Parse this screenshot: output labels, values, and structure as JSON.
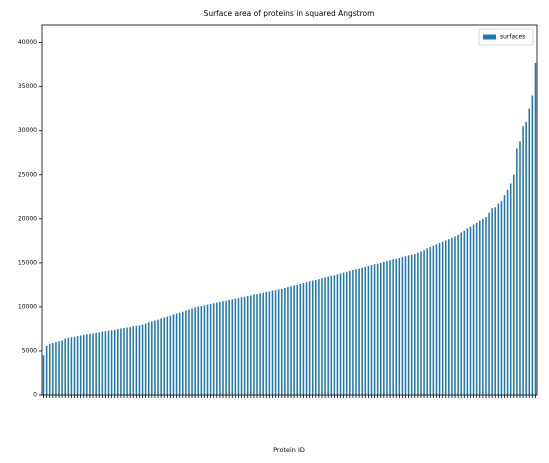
{
  "chart_data": {
    "type": "bar",
    "title": "Surface area of proteins in squared Angstrom",
    "xlabel": "Protein ID",
    "legend": "upper right",
    "series": [
      {
        "name": "surfaces",
        "color": "#1f77b4",
        "values": [
          4500,
          5600,
          5800,
          5900,
          6000,
          6100,
          6200,
          6400,
          6500,
          6550,
          6600,
          6700,
          6750,
          6800,
          6900,
          6950,
          7000,
          7050,
          7100,
          7200,
          7250,
          7300,
          7350,
          7400,
          7500,
          7550,
          7600,
          7650,
          7700,
          7800,
          7850,
          7900,
          8000,
          8100,
          8250,
          8350,
          8450,
          8550,
          8700,
          8800,
          8900,
          9000,
          9150,
          9250,
          9350,
          9450,
          9600,
          9700,
          9800,
          9950,
          10050,
          10100,
          10200,
          10250,
          10350,
          10400,
          10500,
          10550,
          10650,
          10700,
          10800,
          10850,
          10950,
          11000,
          11100,
          11150,
          11250,
          11300,
          11400,
          11450,
          11550,
          11600,
          11700,
          11750,
          11850,
          11900,
          12000,
          12050,
          12150,
          12250,
          12350,
          12450,
          12500,
          12600,
          12700,
          12800,
          12900,
          13000,
          13050,
          13150,
          13250,
          13350,
          13450,
          13550,
          13600,
          13700,
          13800,
          13900,
          14000,
          14100,
          14200,
          14300,
          14350,
          14450,
          14550,
          14650,
          14750,
          14850,
          14900,
          15000,
          15100,
          15200,
          15300,
          15400,
          15450,
          15550,
          15650,
          15750,
          15850,
          15900,
          16000,
          16150,
          16300,
          16450,
          16650,
          16800,
          16950,
          17100,
          17250,
          17400,
          17550,
          17700,
          17850,
          18000,
          18200,
          18450,
          18650,
          18900,
          19100,
          19350,
          19550,
          19800,
          20000,
          20200,
          20700,
          21200,
          21300,
          21700,
          22000,
          22700,
          23300,
          24000,
          25000,
          28000,
          28800,
          30500,
          31000,
          32500,
          34000,
          37700
        ]
      }
    ],
    "categories": [
      null,
      null,
      null,
      null,
      null,
      null,
      null,
      null,
      null,
      null,
      null,
      null,
      null,
      null,
      null,
      null,
      null,
      null,
      null,
      null,
      null,
      null,
      null,
      null,
      null,
      null,
      null,
      null,
      null,
      null,
      null,
      null,
      null,
      null,
      null,
      null,
      null,
      null,
      null,
      null,
      null,
      null,
      null,
      null,
      null,
      null,
      null,
      null,
      null,
      null,
      null,
      null,
      null,
      null,
      null,
      null,
      null,
      null,
      null,
      null,
      null,
      null,
      null,
      null,
      null,
      null,
      null,
      null,
      null,
      null,
      null,
      null,
      null,
      null,
      null,
      null,
      null,
      null,
      null,
      null,
      null,
      null,
      null,
      null,
      null,
      null,
      null,
      null,
      null,
      null,
      null,
      null,
      null,
      null,
      null,
      null,
      null,
      null,
      null,
      null,
      null,
      null,
      null,
      null,
      null,
      null,
      null,
      null,
      null,
      null,
      null,
      null,
      null,
      null,
      null,
      null,
      null,
      null,
      null,
      null,
      null,
      null,
      null,
      null,
      null,
      null,
      null,
      null,
      null,
      null,
      null,
      null,
      null,
      null,
      null,
      null,
      null,
      null,
      null,
      null,
      null,
      null,
      null,
      null,
      null,
      null,
      null,
      null,
      null,
      null,
      null,
      null,
      null,
      null,
      null,
      null,
      null,
      null,
      null,
      null
    ],
    "ylim": [
      0,
      42000
    ],
    "yticks": [
      0,
      5000,
      10000,
      15000,
      20000,
      25000,
      30000,
      35000,
      40000
    ],
    "grid": false
  }
}
